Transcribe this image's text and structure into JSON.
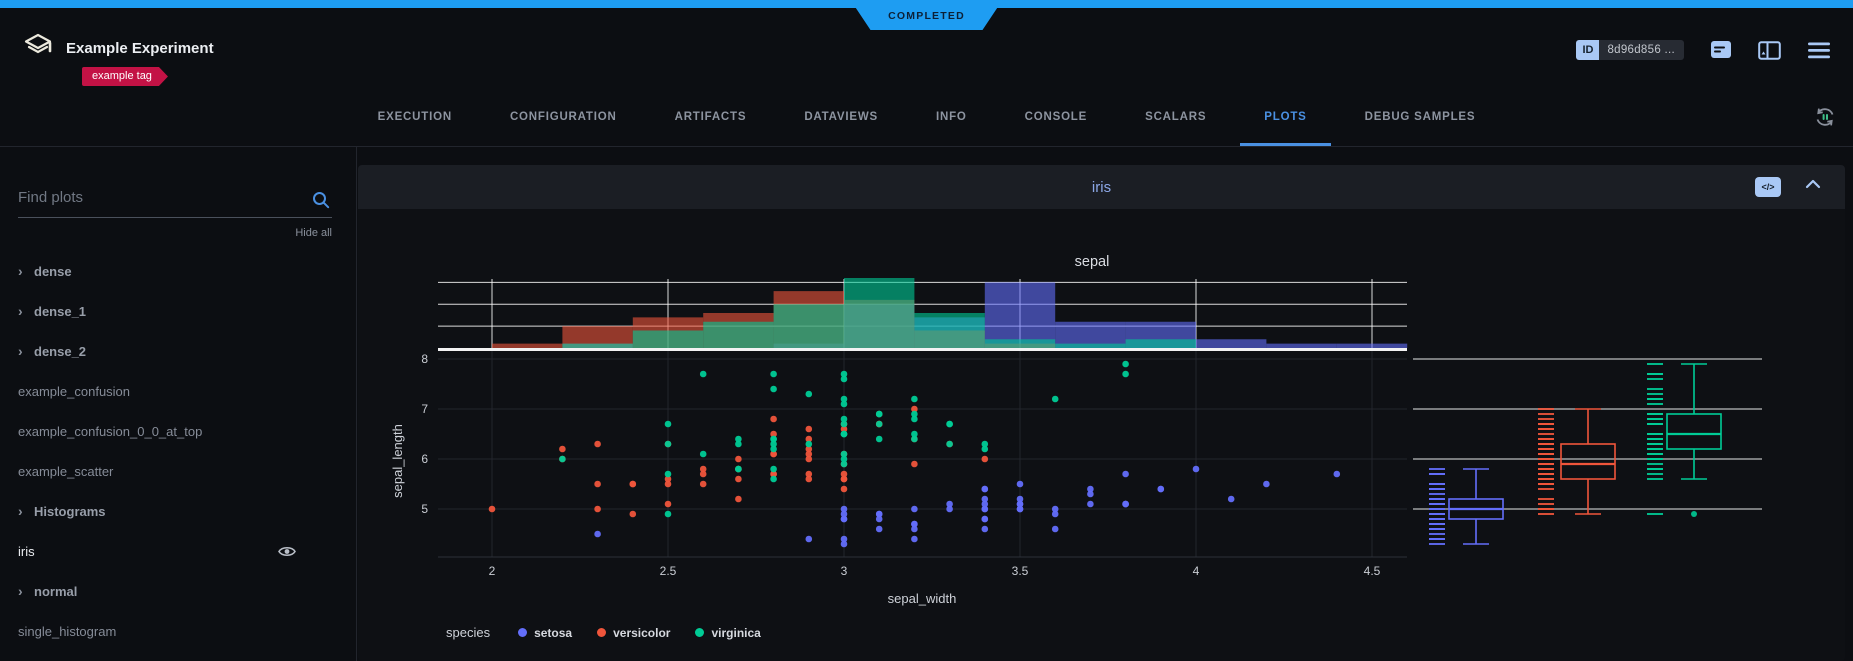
{
  "header": {
    "status": "COMPLETED",
    "title": "Example Experiment",
    "tag": "example tag",
    "id_label": "ID",
    "id_value": "8d96d856 ..."
  },
  "tabs": [
    {
      "label": "EXECUTION"
    },
    {
      "label": "CONFIGURATION"
    },
    {
      "label": "ARTIFACTS"
    },
    {
      "label": "DATAVIEWS"
    },
    {
      "label": "INFO"
    },
    {
      "label": "CONSOLE"
    },
    {
      "label": "SCALARS"
    },
    {
      "label": "PLOTS",
      "active": true
    },
    {
      "label": "DEBUG SAMPLES"
    }
  ],
  "sidebar": {
    "search_placeholder": "Find plots",
    "hide_all": "Hide all",
    "items": [
      {
        "label": "dense",
        "expandable": true
      },
      {
        "label": "dense_1",
        "expandable": true
      },
      {
        "label": "dense_2",
        "expandable": true
      },
      {
        "label": "example_confusion",
        "expandable": false
      },
      {
        "label": "example_confusion_0_0_at_top",
        "expandable": false
      },
      {
        "label": "example_scatter",
        "expandable": false
      },
      {
        "label": "Histograms",
        "expandable": true
      },
      {
        "label": "iris",
        "expandable": false,
        "selected": true
      },
      {
        "label": "normal",
        "expandable": true
      },
      {
        "label": "single_histogram",
        "expandable": false
      }
    ]
  },
  "panel": {
    "title": "iris",
    "embed_code_icon": "</>"
  },
  "colors": {
    "status_bar": "#1e9df2",
    "accent": "#4a90e2",
    "tag": "#c31245",
    "icon_blue": "#a9c8f5",
    "panel_title": "#8ca7e6"
  },
  "chart_data": {
    "type": "scatter",
    "title": "sepal",
    "xlabel": "sepal_width",
    "ylabel": "sepal_length",
    "legend_title": "species",
    "x_ticks": [
      2,
      2.5,
      3,
      3.5,
      4,
      4.5
    ],
    "y_ticks": [
      5,
      6,
      7,
      8
    ],
    "x_range": [
      1.84,
      4.6
    ],
    "y_range": [
      4.04,
      8.2
    ],
    "series": [
      {
        "name": "setosa",
        "color": "#636EFA",
        "x": [
          3.5,
          3.0,
          3.2,
          3.1,
          3.6,
          3.9,
          3.4,
          3.4,
          2.9,
          3.1,
          3.7,
          3.4,
          3.0,
          3.0,
          4.0,
          4.4,
          3.9,
          3.5,
          3.8,
          3.8,
          3.4,
          3.7,
          3.6,
          3.3,
          3.4,
          3.0,
          3.4,
          3.5,
          3.4,
          3.2,
          3.1,
          3.4,
          4.1,
          4.2,
          3.1,
          3.2,
          3.5,
          3.6,
          3.0,
          3.4,
          3.5,
          2.3,
          3.2,
          3.5,
          3.8,
          3.0,
          3.8,
          3.2,
          3.7,
          3.3
        ],
        "y": [
          5.1,
          4.9,
          4.7,
          4.6,
          5.0,
          5.4,
          4.6,
          5.0,
          4.4,
          4.9,
          5.4,
          4.8,
          4.8,
          4.3,
          5.8,
          5.7,
          5.4,
          5.1,
          5.7,
          5.1,
          5.4,
          5.1,
          4.6,
          5.1,
          4.8,
          5.0,
          5.0,
          5.2,
          5.2,
          4.7,
          4.8,
          5.4,
          5.2,
          5.5,
          4.9,
          5.0,
          5.5,
          4.9,
          4.4,
          5.1,
          5.0,
          4.5,
          4.4,
          5.0,
          5.1,
          4.8,
          5.1,
          4.6,
          5.3,
          5.0
        ]
      },
      {
        "name": "versicolor",
        "color": "#EF553B",
        "x": [
          3.2,
          3.2,
          3.1,
          2.3,
          2.8,
          2.8,
          3.3,
          2.4,
          2.9,
          2.7,
          2.0,
          3.0,
          2.2,
          2.9,
          2.9,
          3.1,
          3.0,
          2.7,
          2.2,
          2.5,
          3.2,
          2.8,
          2.5,
          2.8,
          2.9,
          3.0,
          2.8,
          3.0,
          2.9,
          2.6,
          2.4,
          2.4,
          2.7,
          2.7,
          3.0,
          3.4,
          3.1,
          2.3,
          3.0,
          2.5,
          2.6,
          3.0,
          2.6,
          2.3,
          2.7,
          3.0,
          2.9,
          2.9,
          2.5,
          2.8
        ],
        "y": [
          7.0,
          6.4,
          6.9,
          5.5,
          6.5,
          5.7,
          6.3,
          4.9,
          6.6,
          5.2,
          5.0,
          5.9,
          6.0,
          6.1,
          5.6,
          6.7,
          5.6,
          5.8,
          6.2,
          5.6,
          5.9,
          6.1,
          6.3,
          6.1,
          6.4,
          6.6,
          6.8,
          6.7,
          6.0,
          5.7,
          5.5,
          5.5,
          5.8,
          6.0,
          5.4,
          6.0,
          6.7,
          6.3,
          5.6,
          5.5,
          5.5,
          6.1,
          5.8,
          5.0,
          5.6,
          5.7,
          5.7,
          6.2,
          5.1,
          5.7
        ]
      },
      {
        "name": "virginica",
        "color": "#00CC96",
        "x": [
          3.3,
          2.7,
          3.0,
          2.9,
          3.0,
          3.0,
          2.5,
          2.9,
          2.5,
          3.6,
          3.2,
          2.7,
          3.0,
          2.5,
          2.8,
          3.2,
          3.0,
          3.8,
          2.6,
          2.2,
          3.2,
          2.8,
          2.8,
          2.7,
          3.3,
          3.2,
          2.8,
          3.0,
          2.8,
          3.0,
          2.8,
          3.8,
          2.8,
          2.8,
          2.6,
          3.0,
          3.4,
          3.1,
          3.0,
          3.1,
          3.1,
          3.1,
          2.7,
          3.2,
          3.3,
          3.0,
          2.5,
          3.0,
          3.4,
          3.0
        ],
        "y": [
          6.3,
          5.8,
          7.1,
          6.3,
          6.5,
          7.6,
          4.9,
          7.3,
          6.7,
          7.2,
          6.5,
          6.4,
          6.8,
          5.7,
          5.8,
          6.4,
          6.5,
          7.7,
          7.7,
          6.0,
          6.9,
          5.6,
          7.7,
          6.3,
          6.7,
          7.2,
          6.2,
          6.1,
          6.4,
          7.2,
          7.4,
          7.9,
          6.4,
          6.3,
          6.1,
          7.7,
          6.3,
          6.4,
          6.0,
          6.9,
          6.7,
          6.9,
          5.8,
          6.8,
          6.7,
          6.7,
          6.3,
          6.5,
          6.2,
          5.9
        ]
      }
    ],
    "marginal_x_histogram": {
      "bin_start": 2.0,
      "bin_size": 0.2,
      "gridline_counts": [
        5,
        10,
        15
      ],
      "counts": {
        "setosa": [
          0,
          1,
          0,
          0,
          1,
          10,
          7,
          15,
          6,
          6,
          2,
          1,
          1
        ],
        "versicolor": [
          1,
          5,
          7,
          8,
          13,
          11,
          4,
          1,
          0,
          0,
          0,
          0,
          0
        ],
        "virginica": [
          0,
          1,
          4,
          6,
          10,
          16,
          8,
          2,
          1,
          2,
          0,
          0,
          0
        ]
      }
    },
    "marginal_y_box": {
      "setosa": {
        "min": 4.3,
        "q1": 4.8,
        "median": 5.0,
        "q3": 5.2,
        "max": 5.8
      },
      "versicolor": {
        "min": 4.9,
        "q1": 5.6,
        "median": 5.9,
        "q3": 6.3,
        "max": 7.0
      },
      "virginica": {
        "min": 4.9,
        "lower_whisker": 5.6,
        "q1": 6.2,
        "median": 6.5,
        "q3": 6.9,
        "max": 7.9,
        "outliers": [
          4.9
        ]
      }
    }
  }
}
